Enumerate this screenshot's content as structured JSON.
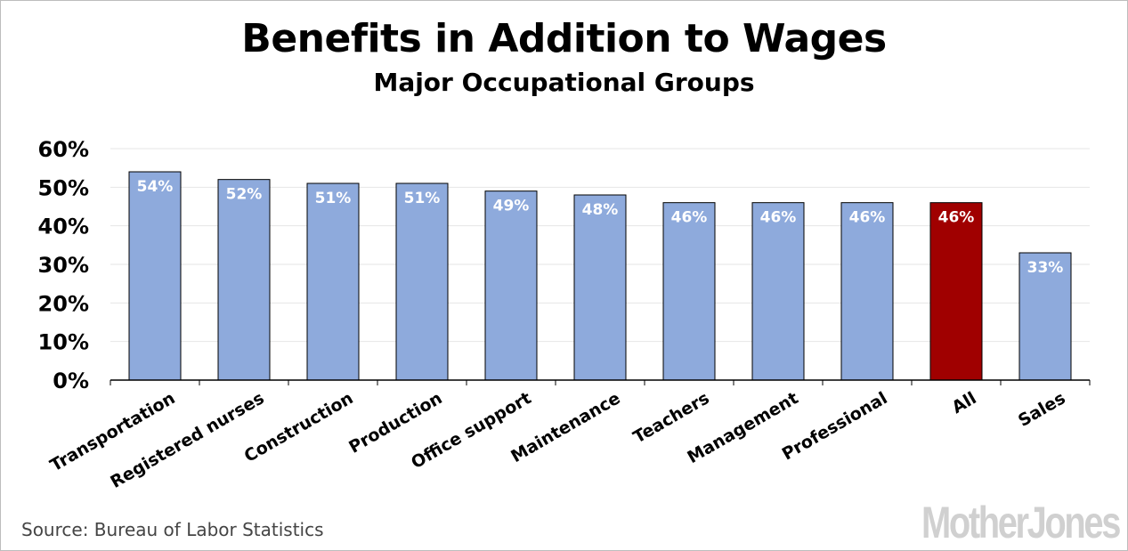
{
  "title": "Benefits in Addition to Wages",
  "subtitle": "Major Occupational Groups",
  "source": "Source: Bureau of Labor Statistics",
  "logo_text": "MotherJones",
  "colors": {
    "bar": "#8eaadc",
    "highlight": "#a00000",
    "bar_label": "#ffffff",
    "gridline": "#e6e6e6"
  },
  "chart_data": {
    "type": "bar",
    "categories": [
      "Transportation",
      "Registered nurses",
      "Construction",
      "Production",
      "Office support",
      "Maintenance",
      "Teachers",
      "Management",
      "Professional",
      "All",
      "Sales"
    ],
    "values": [
      54,
      52,
      51,
      51,
      49,
      48,
      46,
      46,
      46,
      46,
      33
    ],
    "data_labels": [
      "54%",
      "52%",
      "51%",
      "51%",
      "49%",
      "48%",
      "46%",
      "46%",
      "46%",
      "46%",
      "33%"
    ],
    "highlight_category": "All",
    "ylim": [
      0,
      60
    ],
    "yticks": [
      0,
      10,
      20,
      30,
      40,
      50,
      60
    ],
    "ytick_labels": [
      "0%",
      "10%",
      "20%",
      "30%",
      "40%",
      "50%",
      "60%"
    ],
    "grid": true,
    "legend": "none"
  }
}
